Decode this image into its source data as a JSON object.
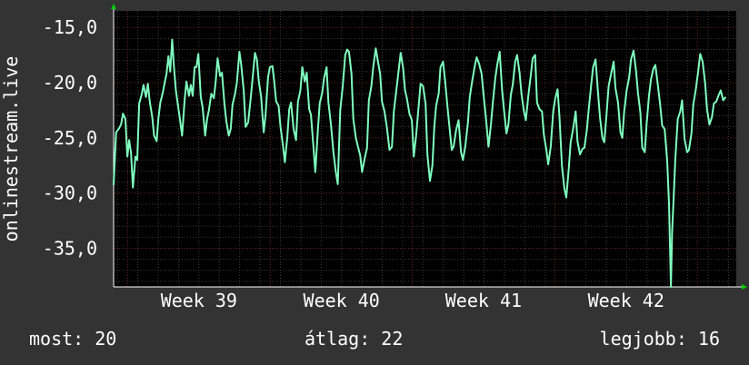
{
  "colors": {
    "background": "#333333",
    "plot_background": "#000000",
    "grid_major": "#6b2424",
    "grid_minor": "#3a3a3a",
    "line": "#7fffbf",
    "axis_arrow": "#00cc00",
    "text": "#ffffff"
  },
  "stats": {
    "current": "most: 20",
    "average": "átlag: 22",
    "best": "legjobb: 16"
  },
  "chart_data": {
    "type": "line",
    "ylabel": "onlinestream.live",
    "ylim": [
      -38.5,
      -13.5
    ],
    "yticks": [
      -15.0,
      -20.0,
      -25.0,
      -30.0,
      -35.0
    ],
    "ytick_labels": [
      "-15,0",
      "-20,0",
      "-25,0",
      "-30,0",
      "-35,0"
    ],
    "xlim": [
      0,
      100
    ],
    "x_ticks": [
      {
        "label": "Week 39",
        "x": 13.7
      },
      {
        "label": "Week 40",
        "x": 36.6
      },
      {
        "label": "Week 41",
        "x": 59.4
      },
      {
        "label": "Week 42",
        "x": 82.3
      }
    ],
    "grid": true,
    "series": [
      {
        "values": [
          [
            0.0,
            -29.3
          ],
          [
            0.4,
            -24.5
          ],
          [
            0.8,
            -24.2
          ],
          [
            1.2,
            -23.8
          ],
          [
            1.5,
            -22.8
          ],
          [
            1.9,
            -23.3
          ],
          [
            2.2,
            -26.7
          ],
          [
            2.5,
            -25.2
          ],
          [
            2.8,
            -26.4
          ],
          [
            3.1,
            -29.5
          ],
          [
            3.5,
            -26.7
          ],
          [
            3.8,
            -27.0
          ],
          [
            4.1,
            -21.9
          ],
          [
            4.5,
            -21.1
          ],
          [
            4.8,
            -20.2
          ],
          [
            5.2,
            -21.3
          ],
          [
            5.5,
            -20.1
          ],
          [
            5.8,
            -21.7
          ],
          [
            6.2,
            -23.1
          ],
          [
            6.5,
            -24.8
          ],
          [
            6.9,
            -25.3
          ],
          [
            7.2,
            -23.2
          ],
          [
            7.5,
            -21.8
          ],
          [
            7.9,
            -20.9
          ],
          [
            8.2,
            -20.0
          ],
          [
            8.5,
            -19.2
          ],
          [
            8.8,
            -17.6
          ],
          [
            9.1,
            -19.0
          ],
          [
            9.4,
            -16.1
          ],
          [
            9.7,
            -18.6
          ],
          [
            10.0,
            -20.7
          ],
          [
            10.4,
            -22.3
          ],
          [
            10.7,
            -23.5
          ],
          [
            11.0,
            -24.8
          ],
          [
            11.4,
            -21.6
          ],
          [
            11.7,
            -19.9
          ],
          [
            12.1,
            -21.2
          ],
          [
            12.4,
            -20.2
          ],
          [
            12.7,
            -21.2
          ],
          [
            13.0,
            -18.6
          ],
          [
            13.3,
            -18.6
          ],
          [
            13.6,
            -17.4
          ],
          [
            14.0,
            -21.3
          ],
          [
            14.3,
            -22.3
          ],
          [
            14.7,
            -24.8
          ],
          [
            15.0,
            -23.3
          ],
          [
            15.3,
            -22.5
          ],
          [
            15.7,
            -21.0
          ],
          [
            16.1,
            -21.4
          ],
          [
            16.4,
            -19.9
          ],
          [
            16.7,
            -17.8
          ],
          [
            17.1,
            -19.4
          ],
          [
            17.4,
            -19.1
          ],
          [
            17.8,
            -21.9
          ],
          [
            18.1,
            -23.5
          ],
          [
            18.5,
            -24.8
          ],
          [
            18.8,
            -24.2
          ],
          [
            19.1,
            -22.0
          ],
          [
            19.5,
            -21.0
          ],
          [
            19.8,
            -20.0
          ],
          [
            20.2,
            -17.2
          ],
          [
            20.5,
            -18.4
          ],
          [
            20.9,
            -20.8
          ],
          [
            21.2,
            -24.0
          ],
          [
            21.6,
            -23.6
          ],
          [
            22.0,
            -21.5
          ],
          [
            22.3,
            -19.7
          ],
          [
            22.7,
            -17.3
          ],
          [
            23.0,
            -17.9
          ],
          [
            23.3,
            -19.8
          ],
          [
            23.7,
            -21.3
          ],
          [
            24.1,
            -24.5
          ],
          [
            24.4,
            -23.0
          ],
          [
            24.8,
            -19.5
          ],
          [
            25.1,
            -18.6
          ],
          [
            25.5,
            -18.5
          ],
          [
            25.8,
            -19.9
          ],
          [
            26.1,
            -21.7
          ],
          [
            26.5,
            -22.1
          ],
          [
            26.8,
            -24.0
          ],
          [
            27.2,
            -25.7
          ],
          [
            27.5,
            -27.2
          ],
          [
            27.9,
            -24.9
          ],
          [
            28.2,
            -22.4
          ],
          [
            28.5,
            -21.8
          ],
          [
            28.9,
            -24.2
          ],
          [
            29.3,
            -25.2
          ],
          [
            29.6,
            -21.7
          ],
          [
            30.0,
            -20.7
          ],
          [
            30.3,
            -18.6
          ],
          [
            30.7,
            -19.9
          ],
          [
            31.0,
            -19.1
          ],
          [
            31.4,
            -22.4
          ],
          [
            31.7,
            -22.9
          ],
          [
            32.1,
            -25.9
          ],
          [
            32.4,
            -28.1
          ],
          [
            32.8,
            -24.3
          ],
          [
            33.1,
            -21.9
          ],
          [
            33.5,
            -20.9
          ],
          [
            33.8,
            -19.6
          ],
          [
            34.2,
            -18.6
          ],
          [
            34.5,
            -21.8
          ],
          [
            34.9,
            -23.8
          ],
          [
            35.3,
            -26.3
          ],
          [
            35.7,
            -28.1
          ],
          [
            36.0,
            -29.2
          ],
          [
            36.4,
            -22.5
          ],
          [
            36.8,
            -20.3
          ],
          [
            37.2,
            -17.5
          ],
          [
            37.5,
            -17.0
          ],
          [
            37.8,
            -17.2
          ],
          [
            38.2,
            -19.2
          ],
          [
            38.5,
            -23.3
          ],
          [
            38.9,
            -25.0
          ],
          [
            39.2,
            -25.7
          ],
          [
            39.6,
            -26.6
          ],
          [
            39.9,
            -28.1
          ],
          [
            40.3,
            -26.9
          ],
          [
            40.7,
            -25.9
          ],
          [
            41.0,
            -21.6
          ],
          [
            41.4,
            -20.3
          ],
          [
            41.7,
            -18.6
          ],
          [
            42.1,
            -16.9
          ],
          [
            42.4,
            -17.9
          ],
          [
            42.8,
            -19.2
          ],
          [
            43.1,
            -21.7
          ],
          [
            43.5,
            -22.6
          ],
          [
            43.9,
            -24.1
          ],
          [
            44.3,
            -26.1
          ],
          [
            44.7,
            -25.8
          ],
          [
            45.0,
            -22.6
          ],
          [
            45.4,
            -20.7
          ],
          [
            45.7,
            -19.3
          ],
          [
            46.1,
            -17.3
          ],
          [
            46.5,
            -18.7
          ],
          [
            46.8,
            -20.7
          ],
          [
            47.1,
            -21.4
          ],
          [
            47.5,
            -22.8
          ],
          [
            47.9,
            -23.4
          ],
          [
            48.2,
            -26.7
          ],
          [
            48.6,
            -24.7
          ],
          [
            49.0,
            -22.1
          ],
          [
            49.3,
            -20.1
          ],
          [
            49.7,
            -20.3
          ],
          [
            50.1,
            -21.9
          ],
          [
            50.4,
            -26.5
          ],
          [
            50.8,
            -28.9
          ],
          [
            51.2,
            -27.5
          ],
          [
            51.5,
            -24.0
          ],
          [
            51.8,
            -22.1
          ],
          [
            52.2,
            -21.0
          ],
          [
            52.5,
            -18.6
          ],
          [
            52.9,
            -18.1
          ],
          [
            53.2,
            -19.6
          ],
          [
            53.6,
            -22.1
          ],
          [
            53.9,
            -23.8
          ],
          [
            54.3,
            -26.1
          ],
          [
            54.6,
            -25.8
          ],
          [
            55.0,
            -24.3
          ],
          [
            55.4,
            -23.4
          ],
          [
            55.8,
            -26.3
          ],
          [
            56.1,
            -27.0
          ],
          [
            56.5,
            -25.7
          ],
          [
            56.9,
            -23.6
          ],
          [
            57.2,
            -21.3
          ],
          [
            57.6,
            -19.8
          ],
          [
            58.0,
            -18.5
          ],
          [
            58.3,
            -17.7
          ],
          [
            58.7,
            -18.3
          ],
          [
            59.1,
            -19.2
          ],
          [
            59.5,
            -21.6
          ],
          [
            59.8,
            -23.2
          ],
          [
            60.2,
            -25.8
          ],
          [
            60.6,
            -23.8
          ],
          [
            60.9,
            -21.8
          ],
          [
            61.3,
            -19.6
          ],
          [
            61.6,
            -18.4
          ],
          [
            62.0,
            -17.2
          ],
          [
            62.4,
            -20.7
          ],
          [
            62.7,
            -22.5
          ],
          [
            63.1,
            -24.6
          ],
          [
            63.4,
            -23.8
          ],
          [
            63.8,
            -21.1
          ],
          [
            64.1,
            -20.2
          ],
          [
            64.5,
            -18.1
          ],
          [
            64.8,
            -17.5
          ],
          [
            65.2,
            -19.1
          ],
          [
            65.5,
            -21.0
          ],
          [
            65.9,
            -22.6
          ],
          [
            66.2,
            -23.4
          ],
          [
            66.6,
            -21.2
          ],
          [
            67.0,
            -19.3
          ],
          [
            67.3,
            -17.8
          ],
          [
            67.7,
            -17.5
          ],
          [
            68.0,
            -21.8
          ],
          [
            68.4,
            -22.4
          ],
          [
            68.8,
            -22.6
          ],
          [
            69.1,
            -24.7
          ],
          [
            69.5,
            -26.1
          ],
          [
            69.8,
            -27.4
          ],
          [
            70.2,
            -25.8
          ],
          [
            70.6,
            -22.6
          ],
          [
            70.9,
            -21.5
          ],
          [
            71.3,
            -20.6
          ],
          [
            71.6,
            -23.1
          ],
          [
            72.0,
            -27.5
          ],
          [
            72.4,
            -29.6
          ],
          [
            72.7,
            -30.4
          ],
          [
            73.1,
            -27.8
          ],
          [
            73.4,
            -25.4
          ],
          [
            73.8,
            -24.2
          ],
          [
            74.2,
            -22.6
          ],
          [
            74.5,
            -25.3
          ],
          [
            74.9,
            -26.5
          ],
          [
            75.3,
            -26.0
          ],
          [
            75.6,
            -25.9
          ],
          [
            76.0,
            -24.3
          ],
          [
            76.3,
            -22.4
          ],
          [
            76.7,
            -20.2
          ],
          [
            77.0,
            -18.6
          ],
          [
            77.4,
            -17.9
          ],
          [
            77.8,
            -20.9
          ],
          [
            78.1,
            -23.1
          ],
          [
            78.5,
            -25.0
          ],
          [
            78.8,
            -25.4
          ],
          [
            79.2,
            -22.6
          ],
          [
            79.5,
            -20.3
          ],
          [
            79.9,
            -19.2
          ],
          [
            80.3,
            -18.1
          ],
          [
            80.6,
            -20.5
          ],
          [
            81.0,
            -21.8
          ],
          [
            81.4,
            -24.5
          ],
          [
            81.7,
            -25.0
          ],
          [
            82.0,
            -22.6
          ],
          [
            82.4,
            -20.7
          ],
          [
            82.8,
            -19.5
          ],
          [
            83.1,
            -17.9
          ],
          [
            83.5,
            -17.1
          ],
          [
            83.9,
            -18.9
          ],
          [
            84.2,
            -20.9
          ],
          [
            84.6,
            -22.7
          ],
          [
            84.9,
            -25.9
          ],
          [
            85.3,
            -26.3
          ],
          [
            85.6,
            -23.7
          ],
          [
            86.0,
            -21.1
          ],
          [
            86.3,
            -19.7
          ],
          [
            86.7,
            -18.7
          ],
          [
            87.0,
            -18.4
          ],
          [
            87.4,
            -20.2
          ],
          [
            87.8,
            -22.1
          ],
          [
            88.1,
            -23.9
          ],
          [
            88.5,
            -24.2
          ],
          [
            88.9,
            -27.1
          ],
          [
            89.2,
            -30.9
          ],
          [
            89.5,
            -38.5
          ],
          [
            89.7,
            -33.5
          ],
          [
            89.9,
            -31.0
          ],
          [
            90.2,
            -27.0
          ],
          [
            90.6,
            -23.3
          ],
          [
            91.0,
            -22.6
          ],
          [
            91.3,
            -21.6
          ],
          [
            91.7,
            -25.1
          ],
          [
            92.1,
            -26.3
          ],
          [
            92.4,
            -26.1
          ],
          [
            92.8,
            -24.6
          ],
          [
            93.1,
            -22.0
          ],
          [
            93.5,
            -20.6
          ],
          [
            93.9,
            -18.9
          ],
          [
            94.2,
            -17.4
          ],
          [
            94.6,
            -18.1
          ],
          [
            95.0,
            -20.1
          ],
          [
            95.3,
            -22.4
          ],
          [
            95.7,
            -23.8
          ],
          [
            96.1,
            -23.1
          ],
          [
            96.4,
            -21.9
          ],
          [
            96.8,
            -21.7
          ],
          [
            97.2,
            -21.1
          ],
          [
            97.5,
            -20.7
          ],
          [
            97.9,
            -21.6
          ],
          [
            98.3,
            -21.3
          ]
        ]
      }
    ]
  }
}
